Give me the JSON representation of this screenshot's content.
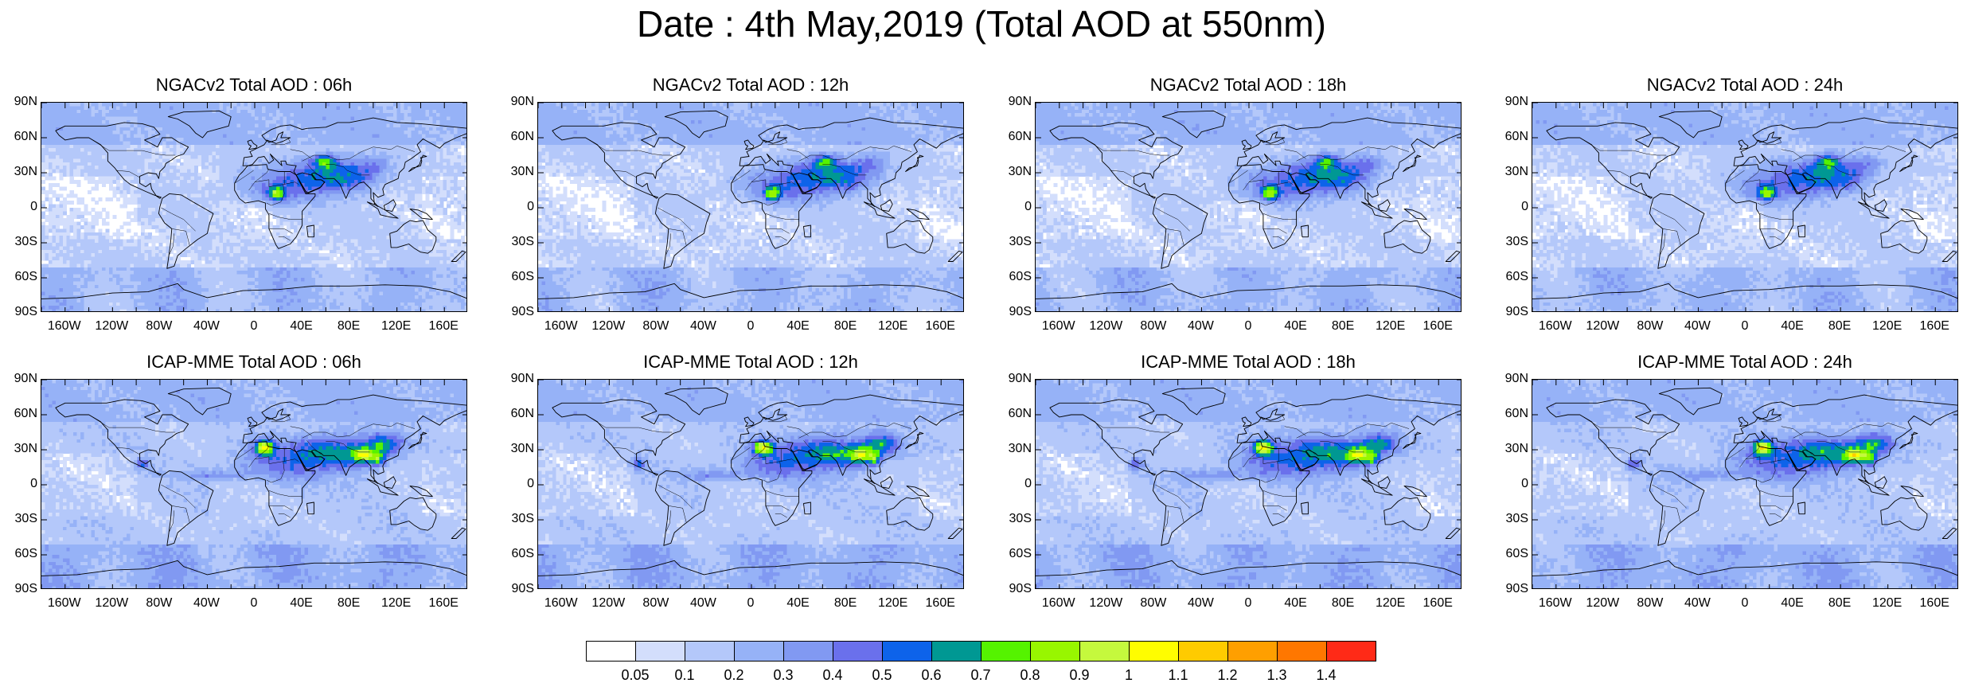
{
  "title": "Date : 4th May,2019 (Total AOD at 550nm)",
  "panels": [
    {
      "row": 0,
      "col": 0,
      "model": "NGAC",
      "title": "NGACv2 Total AOD : 06h"
    },
    {
      "row": 0,
      "col": 1,
      "model": "NGAC",
      "title": "NGACv2 Total AOD : 12h"
    },
    {
      "row": 0,
      "col": 2,
      "model": "NGAC",
      "title": "NGACv2 Total AOD : 18h"
    },
    {
      "row": 0,
      "col": 3,
      "model": "NGAC",
      "title": "NGACv2 Total AOD : 24h"
    },
    {
      "row": 1,
      "col": 0,
      "model": "ICAP",
      "title": "ICAP-MME Total AOD : 06h"
    },
    {
      "row": 1,
      "col": 1,
      "model": "ICAP",
      "title": "ICAP-MME Total AOD : 12h"
    },
    {
      "row": 1,
      "col": 2,
      "model": "ICAP",
      "title": "ICAP-MME Total AOD : 18h"
    },
    {
      "row": 1,
      "col": 3,
      "model": "ICAP",
      "title": "ICAP-MME Total AOD : 24h"
    }
  ],
  "lat_labels": [
    "90N",
    "60N",
    "30N",
    "0",
    "30S",
    "60S",
    "90S"
  ],
  "lon_labels": [
    "160W",
    "120W",
    "80W",
    "40W",
    "0",
    "40E",
    "80E",
    "120E",
    "160E"
  ],
  "colorbar": {
    "colors": [
      "#ffffff",
      "#d3defc",
      "#b4c8fa",
      "#96b2f7",
      "#8199f2",
      "#6a70ec",
      "#0d63ea",
      "#009893",
      "#55f300",
      "#98f600",
      "#c5f93d",
      "#fffd00",
      "#ffcb00",
      "#ff9f00",
      "#ff7700",
      "#ff2a17"
    ],
    "labels": [
      "0.05",
      "0.1",
      "0.2",
      "0.3",
      "0.4",
      "0.5",
      "0.6",
      "0.7",
      "0.8",
      "0.9",
      "1",
      "1.1",
      "1.2",
      "1.3",
      "1.4"
    ]
  }
}
